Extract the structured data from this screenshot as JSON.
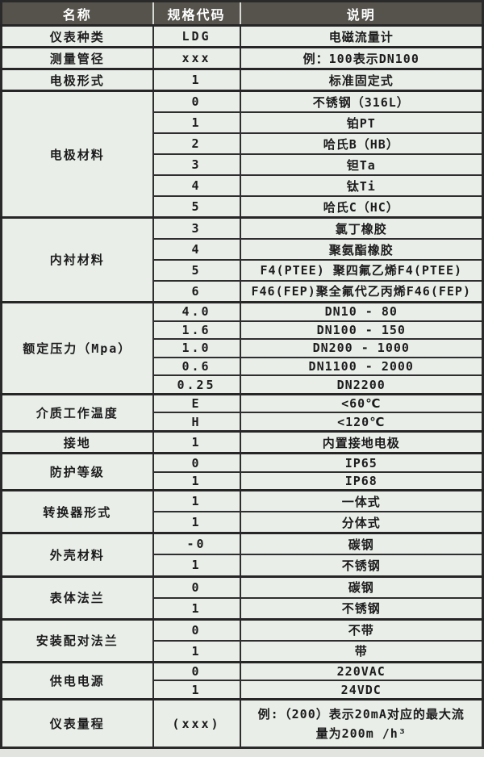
{
  "colors": {
    "header_bg": "#56534d",
    "header_text": "#ffffff",
    "body_bg": "#e9eee9",
    "grid_line": "#2e2e2e",
    "text": "#1c1c1c"
  },
  "table": {
    "headers": [
      "名称",
      "规格代码",
      "说明"
    ],
    "groups": [
      {
        "name": "仪表种类",
        "rows": [
          {
            "code": "LDG",
            "desc": "电磁流量计"
          }
        ]
      },
      {
        "name": "测量管径",
        "rows": [
          {
            "code": "xxx",
            "desc": "例：100表示DN100"
          }
        ]
      },
      {
        "name": "电极形式",
        "rows": [
          {
            "code": "1",
            "desc": "标准固定式"
          }
        ]
      },
      {
        "name": "电极材料",
        "rows": [
          {
            "code": "0",
            "desc": "不锈钢（316L）"
          },
          {
            "code": "1",
            "desc": "铂PT"
          },
          {
            "code": "2",
            "desc": "哈氏B（HB）"
          },
          {
            "code": "3",
            "desc": "钽Ta"
          },
          {
            "code": "4",
            "desc": "钛Ti"
          },
          {
            "code": "5",
            "desc": "哈氏C（HC）"
          }
        ]
      },
      {
        "name": "内衬材料",
        "rows": [
          {
            "code": "3",
            "desc": "氯丁橡胶"
          },
          {
            "code": "4",
            "desc": "聚氨酯橡胶"
          },
          {
            "code": "5",
            "desc": "F4(PTEE) 聚四氟乙烯F4(PTEE)"
          },
          {
            "code": "6",
            "desc": "F46(FEP)聚全氟代乙丙烯F46(FEP)"
          }
        ]
      },
      {
        "name": "额定压力（Mpa）",
        "rows": [
          {
            "code": "4.0",
            "desc": "DN10 - 80"
          },
          {
            "code": "1.6",
            "desc": "DN100 - 150"
          },
          {
            "code": "1.0",
            "desc": "DN200 - 1000"
          },
          {
            "code": "0.6",
            "desc": "DN1100 - 2000"
          },
          {
            "code": "0.25",
            "desc": "DN2200"
          }
        ]
      },
      {
        "name": "介质工作温度",
        "rows": [
          {
            "code": "E",
            "desc": "<60℃"
          },
          {
            "code": "H",
            "desc": "<120℃"
          }
        ]
      },
      {
        "name": "接地",
        "rows": [
          {
            "code": "1",
            "desc": "内置接地电极"
          }
        ]
      },
      {
        "name": "防护等级",
        "rows": [
          {
            "code": "0",
            "desc": "IP65"
          },
          {
            "code": "1",
            "desc": "IP68"
          }
        ]
      },
      {
        "name": "转换器形式",
        "rows": [
          {
            "code": "1",
            "desc": "一体式"
          },
          {
            "code": "1",
            "desc": "分体式"
          }
        ]
      },
      {
        "name": "外壳材料",
        "rows": [
          {
            "code": "-0",
            "desc": "碳钢"
          },
          {
            "code": "1",
            "desc": "不锈钢"
          }
        ]
      },
      {
        "name": "表体法兰",
        "rows": [
          {
            "code": "0",
            "desc": "碳钢"
          },
          {
            "code": "1",
            "desc": "不锈钢"
          }
        ]
      },
      {
        "name": "安装配对法兰",
        "rows": [
          {
            "code": "0",
            "desc": "不带"
          },
          {
            "code": "1",
            "desc": "带"
          }
        ]
      },
      {
        "name": "供电电源",
        "rows": [
          {
            "code": "0",
            "desc": "220VAC"
          },
          {
            "code": "1",
            "desc": "24VDC"
          }
        ]
      },
      {
        "name": "仪表量程",
        "rows": [
          {
            "code": "(xxx)",
            "desc": "例:（200）表示20mA对应的最大流量为200m /h³",
            "tall": true
          }
        ]
      }
    ]
  }
}
